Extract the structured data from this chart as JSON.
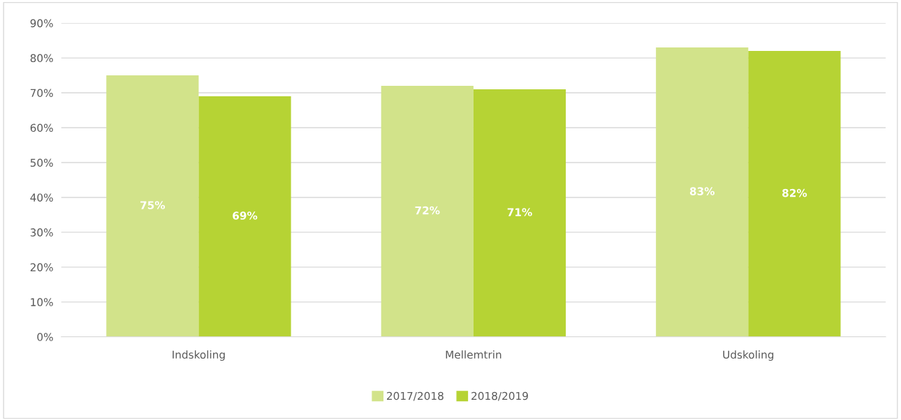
{
  "chart_data": {
    "type": "bar",
    "categories": [
      "Indskoling",
      "Mellemtrin",
      "Udskoling"
    ],
    "series": [
      {
        "name": "2017/2018",
        "color": "#d2e38a",
        "values": [
          75,
          72,
          83
        ],
        "value_labels": [
          "75%",
          "72%",
          "83%"
        ]
      },
      {
        "name": "2018/2019",
        "color": "#b6d334",
        "values": [
          69,
          71,
          82
        ],
        "value_labels": [
          "69%",
          "71%",
          "82%"
        ]
      }
    ],
    "ylim": [
      0,
      90
    ],
    "yticks": [
      {
        "value": 0,
        "label": "0%"
      },
      {
        "value": 10,
        "label": "10%"
      },
      {
        "value": 20,
        "label": "20%"
      },
      {
        "value": 30,
        "label": "30%"
      },
      {
        "value": 40,
        "label": "40%"
      },
      {
        "value": 50,
        "label": "50%"
      },
      {
        "value": 60,
        "label": "60%"
      },
      {
        "value": 70,
        "label": "70%"
      },
      {
        "value": 80,
        "label": "80%"
      },
      {
        "value": 90,
        "label": "90%"
      }
    ],
    "grid": "y",
    "legend": "bottom"
  }
}
